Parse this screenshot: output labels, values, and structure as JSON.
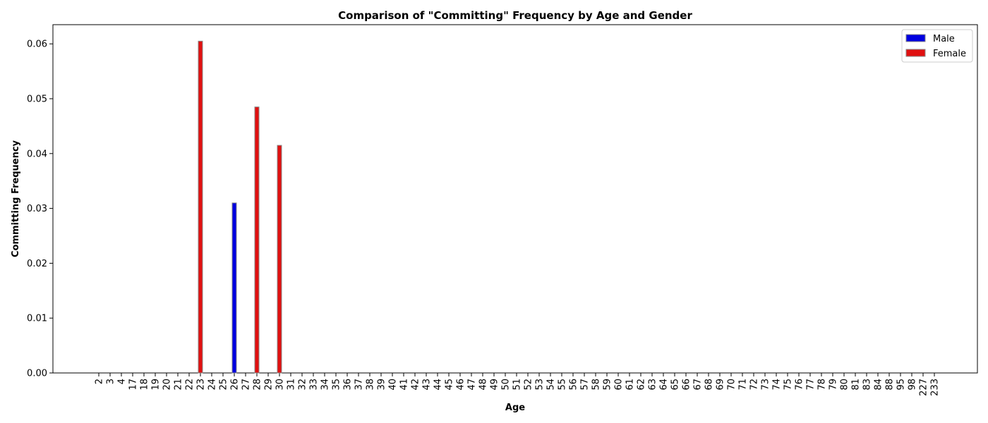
{
  "chart_data": {
    "type": "bar",
    "title": "Comparison of \"Committing\" Frequency by Age and Gender",
    "xlabel": "Age",
    "ylabel": "Committing Frequency",
    "ylim": [
      0,
      0.0635
    ],
    "yticks": [
      0.0,
      0.01,
      0.02,
      0.03,
      0.04,
      0.05,
      0.06
    ],
    "ytick_labels": [
      "0.00",
      "0.01",
      "0.02",
      "0.03",
      "0.04",
      "0.05",
      "0.06"
    ],
    "grid": false,
    "legend_position": "top-right",
    "categories": [
      "2",
      "3",
      "4",
      "17",
      "18",
      "19",
      "20",
      "21",
      "22",
      "23",
      "24",
      "25",
      "26",
      "27",
      "28",
      "29",
      "30",
      "31",
      "32",
      "33",
      "34",
      "35",
      "36",
      "37",
      "38",
      "39",
      "40",
      "41",
      "42",
      "43",
      "44",
      "45",
      "46",
      "47",
      "48",
      "49",
      "50",
      "51",
      "52",
      "53",
      "54",
      "55",
      "56",
      "57",
      "58",
      "59",
      "60",
      "61",
      "62",
      "63",
      "64",
      "65",
      "66",
      "67",
      "68",
      "69",
      "70",
      "71",
      "72",
      "73",
      "74",
      "75",
      "76",
      "77",
      "78",
      "79",
      "80",
      "81",
      "83",
      "84",
      "88",
      "95",
      "98",
      "227",
      "233"
    ],
    "series": [
      {
        "name": "Male",
        "color": "#0000e0",
        "values": {
          "26": 0.031
        }
      },
      {
        "name": "Female",
        "color": "#e01010",
        "values": {
          "23": 0.0605,
          "28": 0.0485,
          "30": 0.0415
        }
      }
    ]
  }
}
